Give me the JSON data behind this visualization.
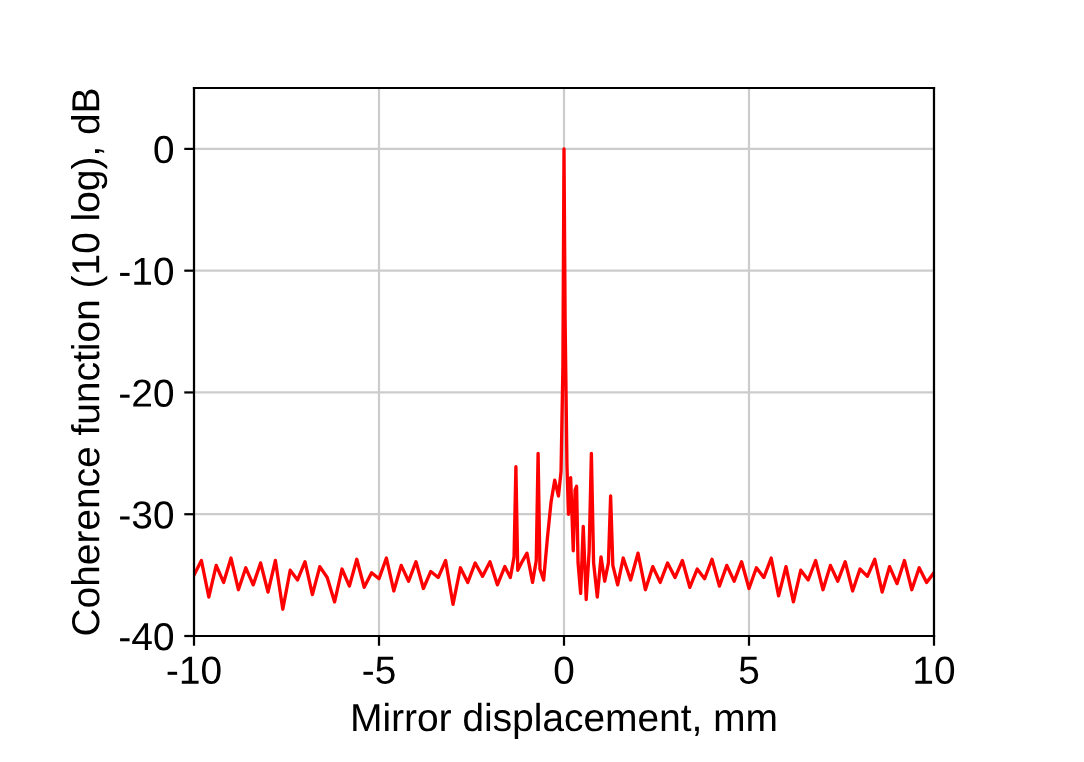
{
  "chart_data": {
    "type": "line",
    "xlabel": "Mirror displacement, mm",
    "ylabel": "Coherence function (10 log), dB",
    "xlim": [
      -10,
      10
    ],
    "ylim": [
      -40,
      5
    ],
    "xticks": [
      -10,
      -5,
      0,
      5,
      10
    ],
    "yticks": [
      -40,
      -30,
      -20,
      -10,
      0
    ],
    "grid": true,
    "legend": false,
    "series": [
      {
        "color": "#ff0000",
        "x": [
          -10,
          -9.8,
          -9.6,
          -9.4,
          -9.2,
          -9.0,
          -8.8,
          -8.6,
          -8.4,
          -8.2,
          -8.0,
          -7.8,
          -7.6,
          -7.4,
          -7.2,
          -7.0,
          -6.8,
          -6.6,
          -6.4,
          -6.2,
          -6.0,
          -5.8,
          -5.6,
          -5.4,
          -5.2,
          -5.0,
          -4.8,
          -4.6,
          -4.4,
          -4.2,
          -4.0,
          -3.8,
          -3.6,
          -3.4,
          -3.2,
          -3.0,
          -2.8,
          -2.6,
          -2.4,
          -2.2,
          -2.0,
          -1.8,
          -1.6,
          -1.45,
          -1.35,
          -1.3,
          -1.25,
          -1.15,
          -1.0,
          -0.85,
          -0.75,
          -0.7,
          -0.65,
          -0.55,
          -0.45,
          -0.35,
          -0.25,
          -0.15,
          -0.08,
          -0.03,
          0.0,
          0.03,
          0.08,
          0.12,
          0.18,
          0.25,
          0.3,
          0.34,
          0.38,
          0.45,
          0.52,
          0.6,
          0.68,
          0.74,
          0.8,
          0.9,
          1.0,
          1.1,
          1.2,
          1.26,
          1.32,
          1.45,
          1.6,
          1.8,
          2.0,
          2.2,
          2.4,
          2.6,
          2.8,
          3.0,
          3.2,
          3.4,
          3.6,
          3.8,
          4.0,
          4.2,
          4.4,
          4.6,
          4.8,
          5.0,
          5.2,
          5.4,
          5.6,
          5.8,
          6.0,
          6.2,
          6.4,
          6.6,
          6.8,
          7.0,
          7.2,
          7.4,
          7.6,
          7.8,
          8.0,
          8.2,
          8.4,
          8.6,
          8.8,
          9.0,
          9.2,
          9.4,
          9.6,
          9.8,
          10
        ],
        "values": [
          -35,
          -33.8,
          -36.8,
          -34.2,
          -35.6,
          -33.6,
          -36.2,
          -34.4,
          -35.8,
          -34,
          -36.4,
          -33.8,
          -37.8,
          -34.6,
          -35.4,
          -33.9,
          -36.6,
          -34.3,
          -35.2,
          -37.2,
          -34.5,
          -35.9,
          -33.7,
          -36,
          -34.8,
          -35.3,
          -33.6,
          -36.3,
          -34.2,
          -35.5,
          -33.9,
          -36.1,
          -34.7,
          -35.2,
          -33.8,
          -37.4,
          -34.4,
          -35.6,
          -34,
          -35.1,
          -33.9,
          -35.8,
          -34.3,
          -35.2,
          -33.5,
          -26.1,
          -34.6,
          -34,
          -33.2,
          -35.6,
          -33.8,
          -25,
          -34.5,
          -35.4,
          -32,
          -29,
          -27.2,
          -28.5,
          -26.5,
          -18,
          0,
          -14,
          -26,
          -30,
          -27,
          -33,
          -28,
          -27.7,
          -34,
          -36.5,
          -31,
          -37,
          -33,
          -25,
          -34,
          -36.8,
          -33.5,
          -35.5,
          -34,
          -28.5,
          -34.2,
          -35.8,
          -33.6,
          -35.4,
          -33.2,
          -36.2,
          -34.3,
          -35.6,
          -34,
          -35.2,
          -33.8,
          -36,
          -34.5,
          -35.3,
          -33.7,
          -35.9,
          -34.2,
          -35.5,
          -33.9,
          -36.1,
          -34.4,
          -35.2,
          -33.6,
          -36.7,
          -34.3,
          -37.2,
          -34.6,
          -35.4,
          -33.8,
          -36.2,
          -34.2,
          -35.5,
          -33.9,
          -36.3,
          -34.5,
          -35.1,
          -33.7,
          -36.4,
          -34.3,
          -35.7,
          -33.8,
          -36.2,
          -34.4,
          -35.6,
          -34.8
        ]
      }
    ]
  }
}
